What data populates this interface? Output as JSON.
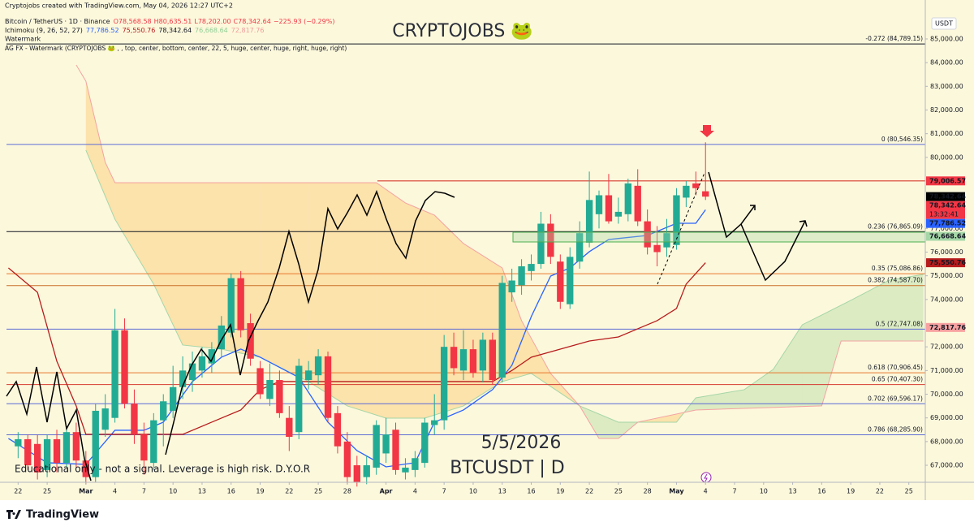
{
  "chart_data": {
    "type": "candlestick",
    "header": {
      "credit": "Cryptojobs created with TradingView.com, May 04, 2026 12:27 UTC+2",
      "symbol": "Bitcoin / TetherUS · 1D · Binance",
      "ohlc": [
        "O78,568.58",
        "H80,635.51",
        "L78,202.00",
        "C78,342.64",
        "−225.93 (−0.29%)"
      ],
      "ichimoku": "Ichimoku (9, 26, 52, 27)",
      "ichimoku_values": [
        "77,786.52",
        "75,550.76",
        "78,342.64",
        "76,668.64",
        "72,817.76"
      ],
      "watermark": "Watermark",
      "agfx": "AG FX - Watermark (CRYPTOJOBS 🐸 , , top, center, bottom, center, 22, 5, huge, center, huge, right, huge, right)"
    },
    "title": "CRYPTOJOBS 🐸",
    "date_note": "5/5/2026",
    "symbol_note": "BTCUSDT | D",
    "disclaimer": "Educational only - not a signal. Leverage is high risk. D.Y.O.R",
    "currency": "USDT",
    "brand": "TradingView",
    "up_color": "#22ab94",
    "down_color": "#f23645",
    "xlim": [
      -1.2,
      93.7
    ],
    "ylim": [
      66350,
      86370
    ],
    "xticks": [
      {
        "value": 0,
        "label": "22"
      },
      {
        "value": 3,
        "label": "25"
      },
      {
        "value": 7,
        "label": "Mar"
      },
      {
        "value": 10,
        "label": "4"
      },
      {
        "value": 13,
        "label": "7"
      },
      {
        "value": 16,
        "label": "10"
      },
      {
        "value": 19,
        "label": "13"
      },
      {
        "value": 22,
        "label": "16"
      },
      {
        "value": 25,
        "label": "19"
      },
      {
        "value": 28,
        "label": "22"
      },
      {
        "value": 31,
        "label": "25"
      },
      {
        "value": 34,
        "label": "28"
      },
      {
        "value": 38,
        "label": "Apr"
      },
      {
        "value": 41,
        "label": "4"
      },
      {
        "value": 44,
        "label": "7"
      },
      {
        "value": 47,
        "label": "10"
      },
      {
        "value": 50,
        "label": "13"
      },
      {
        "value": 53,
        "label": "16"
      },
      {
        "value": 56,
        "label": "19"
      },
      {
        "value": 59,
        "label": "22"
      },
      {
        "value": 62,
        "label": "25"
      },
      {
        "value": 65,
        "label": "28"
      },
      {
        "value": 68,
        "label": "May"
      },
      {
        "value": 71,
        "label": "4"
      },
      {
        "value": 74,
        "label": "7"
      },
      {
        "value": 77,
        "label": "10"
      },
      {
        "value": 80,
        "label": "13"
      },
      {
        "value": 83,
        "label": "16"
      },
      {
        "value": 86,
        "label": "19"
      },
      {
        "value": 89,
        "label": "22"
      },
      {
        "value": 92,
        "label": "25"
      }
    ],
    "yticks": [
      {
        "value": 85000,
        "label": "85,000.00"
      },
      {
        "value": 84000,
        "label": "84,000.00"
      },
      {
        "value": 83000,
        "label": "83,000.00"
      },
      {
        "value": 82000,
        "label": "82,000.00"
      },
      {
        "value": 81000,
        "label": "81,000.00"
      },
      {
        "value": 80000,
        "label": "80,000.00"
      },
      {
        "value": 77000,
        "label": "77,000.00"
      },
      {
        "value": 76000,
        "label": "76,000.00"
      },
      {
        "value": 75000,
        "label": "75,000.00"
      },
      {
        "value": 74000,
        "label": "74,000.00"
      },
      {
        "value": 72000,
        "label": "72,000.00"
      },
      {
        "value": 71000,
        "label": "71,000.00"
      },
      {
        "value": 70000,
        "label": "70,000.00"
      },
      {
        "value": 69000,
        "label": "69,000.00"
      },
      {
        "value": 68000,
        "label": "68,000.00"
      },
      {
        "value": 67000,
        "label": "67,000.00"
      }
    ],
    "grid": false,
    "candles": [
      [
        67800,
        68400,
        67300,
        68100
      ],
      [
        68100,
        68300,
        66800,
        67000
      ],
      [
        67900,
        68300,
        66400,
        66700
      ],
      [
        66800,
        68300,
        66500,
        68100
      ],
      [
        68100,
        68500,
        66700,
        67100
      ],
      [
        67100,
        68600,
        66900,
        68400
      ],
      [
        68400,
        68800,
        66900,
        67200
      ],
      [
        67200,
        67600,
        66200,
        66500
      ],
      [
        66500,
        69600,
        66300,
        69300
      ],
      [
        68500,
        70000,
        68200,
        69400
      ],
      [
        69000,
        73600,
        68800,
        72700
      ],
      [
        72700,
        73200,
        69400,
        69600
      ],
      [
        69600,
        70200,
        67900,
        68300
      ],
      [
        68300,
        68800,
        66600,
        67200
      ],
      [
        67100,
        69200,
        66800,
        68900
      ],
      [
        68900,
        70000,
        67800,
        69700
      ],
      [
        69300,
        71200,
        69000,
        70300
      ],
      [
        70300,
        71600,
        69800,
        71000
      ],
      [
        70600,
        71800,
        70100,
        71300
      ],
      [
        71000,
        72000,
        70700,
        71600
      ],
      [
        71300,
        72200,
        70900,
        71900
      ],
      [
        71900,
        73300,
        71600,
        72900
      ],
      [
        72600,
        75100,
        72400,
        74900
      ],
      [
        74900,
        75200,
        72400,
        72700
      ],
      [
        73000,
        73400,
        71200,
        71500
      ],
      [
        71100,
        71400,
        69800,
        70000
      ],
      [
        69800,
        71300,
        69500,
        70600
      ],
      [
        70600,
        71000,
        69000,
        69200
      ],
      [
        69000,
        69500,
        67600,
        68200
      ],
      [
        68400,
        71500,
        68100,
        71200
      ],
      [
        70600,
        71400,
        70200,
        71000
      ],
      [
        70800,
        71900,
        70400,
        71600
      ],
      [
        71600,
        71800,
        68800,
        69000
      ],
      [
        69200,
        69500,
        67500,
        67800
      ],
      [
        68000,
        68400,
        66200,
        66500
      ],
      [
        67000,
        67400,
        66100,
        66300
      ],
      [
        66500,
        67400,
        66200,
        67000
      ],
      [
        66900,
        68900,
        66600,
        68700
      ],
      [
        67500,
        69000,
        67100,
        68300
      ],
      [
        68500,
        68800,
        66600,
        66800
      ],
      [
        66700,
        67300,
        66400,
        66900
      ],
      [
        66800,
        67600,
        66500,
        67300
      ],
      [
        67100,
        69000,
        66900,
        68800
      ],
      [
        68700,
        70000,
        68300,
        68900
      ],
      [
        68900,
        72500,
        68500,
        72000
      ],
      [
        72000,
        72600,
        70800,
        71100
      ],
      [
        71000,
        72700,
        70600,
        71900
      ],
      [
        71900,
        72300,
        70700,
        70900
      ],
      [
        71000,
        72600,
        70500,
        72300
      ],
      [
        72300,
        72600,
        70400,
        70600
      ],
      [
        70700,
        75000,
        70500,
        74700
      ],
      [
        74300,
        75300,
        73900,
        74800
      ],
      [
        74600,
        75700,
        74200,
        75400
      ],
      [
        75200,
        75900,
        74800,
        75500
      ],
      [
        75500,
        77700,
        75300,
        77200
      ],
      [
        77200,
        77600,
        75500,
        75800
      ],
      [
        75600,
        75900,
        73600,
        73900
      ],
      [
        73800,
        76200,
        73600,
        75800
      ],
      [
        75600,
        77300,
        75300,
        76800
      ],
      [
        76400,
        79400,
        76200,
        78200
      ],
      [
        77600,
        78600,
        77000,
        78400
      ],
      [
        78400,
        79300,
        77200,
        77300
      ],
      [
        77500,
        78300,
        77200,
        77700
      ],
      [
        77600,
        79100,
        77300,
        78900
      ],
      [
        78800,
        79500,
        77100,
        77300
      ],
      [
        77300,
        77800,
        75900,
        76200
      ],
      [
        76300,
        77100,
        75400,
        76000
      ],
      [
        76200,
        77400,
        75800,
        76800
      ],
      [
        76300,
        78700,
        76100,
        78400
      ],
      [
        78300,
        79000,
        77900,
        78800
      ],
      [
        78900,
        79400,
        78400,
        78700
      ],
      [
        78568.58,
        80635.51,
        78202,
        78342.64
      ]
    ],
    "lines": [
      {
        "color": "#2962ff",
        "x": [
          -1,
          3,
          7,
          10,
          13,
          15,
          18,
          21,
          23,
          25,
          29,
          32,
          35,
          38,
          41,
          43,
          46,
          49,
          51,
          53,
          55,
          57,
          59,
          61,
          65,
          68,
          70,
          71
        ],
        "values": [
          68130,
          67106,
          67037,
          68477,
          68477,
          68820,
          70534,
          71562,
          71905,
          71562,
          70705,
          68820,
          67620,
          66934,
          67106,
          68820,
          69334,
          70191,
          71219,
          73276,
          74990,
          75333,
          76019,
          76533,
          76704,
          77218,
          77218,
          77786.52
        ]
      },
      {
        "color": "#b71c1c",
        "x": [
          -1,
          2,
          4,
          6,
          7,
          17,
          20,
          23,
          25,
          27,
          49,
          51,
          53,
          56,
          59,
          62,
          64,
          66,
          68,
          69,
          71
        ],
        "values": [
          75333,
          74305,
          71391,
          69506,
          68306,
          68306,
          68820,
          69334,
          70191,
          70534,
          70534,
          71000,
          71562,
          71905,
          72248,
          72419,
          72762,
          73105,
          73619,
          74648,
          75550.76
        ]
      }
    ],
    "cloud": {
      "span_a": {
        "color": "#a5d6a7",
        "x": [
          7,
          10,
          14,
          17,
          21,
          25,
          30,
          34,
          38,
          42,
          46,
          50,
          53,
          58,
          62,
          68,
          70,
          75,
          78,
          81,
          86,
          90,
          93.5
        ],
        "values": [
          80304,
          77390,
          74648,
          72076,
          71905,
          71562,
          70534,
          69506,
          68991,
          68991,
          69506,
          70534,
          70877,
          69506,
          68820,
          68820,
          69848,
          70191,
          71048,
          72933,
          73962,
          74819,
          75059
        ]
      },
      "span_b": {
        "color": "#f4a3a3",
        "x": [
          6,
          7,
          9,
          10,
          37,
          40,
          43,
          46,
          50,
          52,
          55,
          58,
          60,
          62,
          64,
          70,
          83,
          85,
          93.5
        ],
        "values": [
          83903,
          83217,
          79789,
          78932,
          78932,
          78075,
          77561,
          76362,
          75333,
          73105,
          70877,
          69506,
          68134,
          68134,
          68820,
          69334,
          69506,
          72248,
          72248
        ]
      },
      "up_fill": "rgba(76,175,80,0.18)",
      "down_fill": "rgba(255,152,0,0.22)"
    },
    "levels": [
      {
        "label": "-0.272 (84,789.15)",
        "value": 84789.15,
        "color": "#131722"
      },
      {
        "label": "0 (80,546.35)",
        "value": 80546.35,
        "color": "#5b6bd6"
      },
      {
        "label": "0.236 (76,865.09)",
        "value": 76865.09,
        "color": "#131722"
      },
      {
        "label": "0.35 (75,086.86)",
        "value": 75086.86,
        "color": "#e8772e"
      },
      {
        "label": "0.382 (74,587.70)",
        "value": 74587.7,
        "color": "#c96f28"
      },
      {
        "label": "0.5 (72,747.08)",
        "value": 72747.08,
        "color": "#5b6bd6"
      },
      {
        "label": "0.618 (70,906.45)",
        "value": 70906.45,
        "color": "#e8772e"
      },
      {
        "label": "0.65 (70,407.30)",
        "value": 70407.3,
        "color": "#d63a2f"
      },
      {
        "label": "0.702 (69,596.17)",
        "value": 69596.17,
        "color": "#5b6bd6"
      },
      {
        "label": "0.786 (68,285.90)",
        "value": 68285.9,
        "color": "#5b6bd6"
      }
    ],
    "resistance": {
      "value": 79006.57,
      "color": "#d63a2f"
    },
    "tags": [
      {
        "label": "79,006.57",
        "value": 79006.57,
        "color": "#f23645",
        "text_color": "#ffffff"
      },
      {
        "label": "78,342.64",
        "value": 78342.64,
        "color": "#000000",
        "text_color": "#ffffff"
      },
      {
        "label": "78,342.64",
        "value": 78342.64,
        "color": "#f23645",
        "text_color": "#ffffff",
        "sub": "13:32:41"
      },
      {
        "label": "77,786.52",
        "value": 77786.52,
        "color": "#2962ff",
        "text_color": "#ffffff"
      },
      {
        "label": "76,668.64",
        "value": 76668.64,
        "color": "#a5d6a7",
        "text_color": "#131722"
      },
      {
        "label": "75,550.76",
        "value": 75550.76,
        "color": "#b71c1c",
        "text_color": "#ffffff"
      },
      {
        "label": "72,817.76",
        "value": 72817.76,
        "color": "#f7a1a1",
        "text_color": "#131722"
      }
    ]
  }
}
